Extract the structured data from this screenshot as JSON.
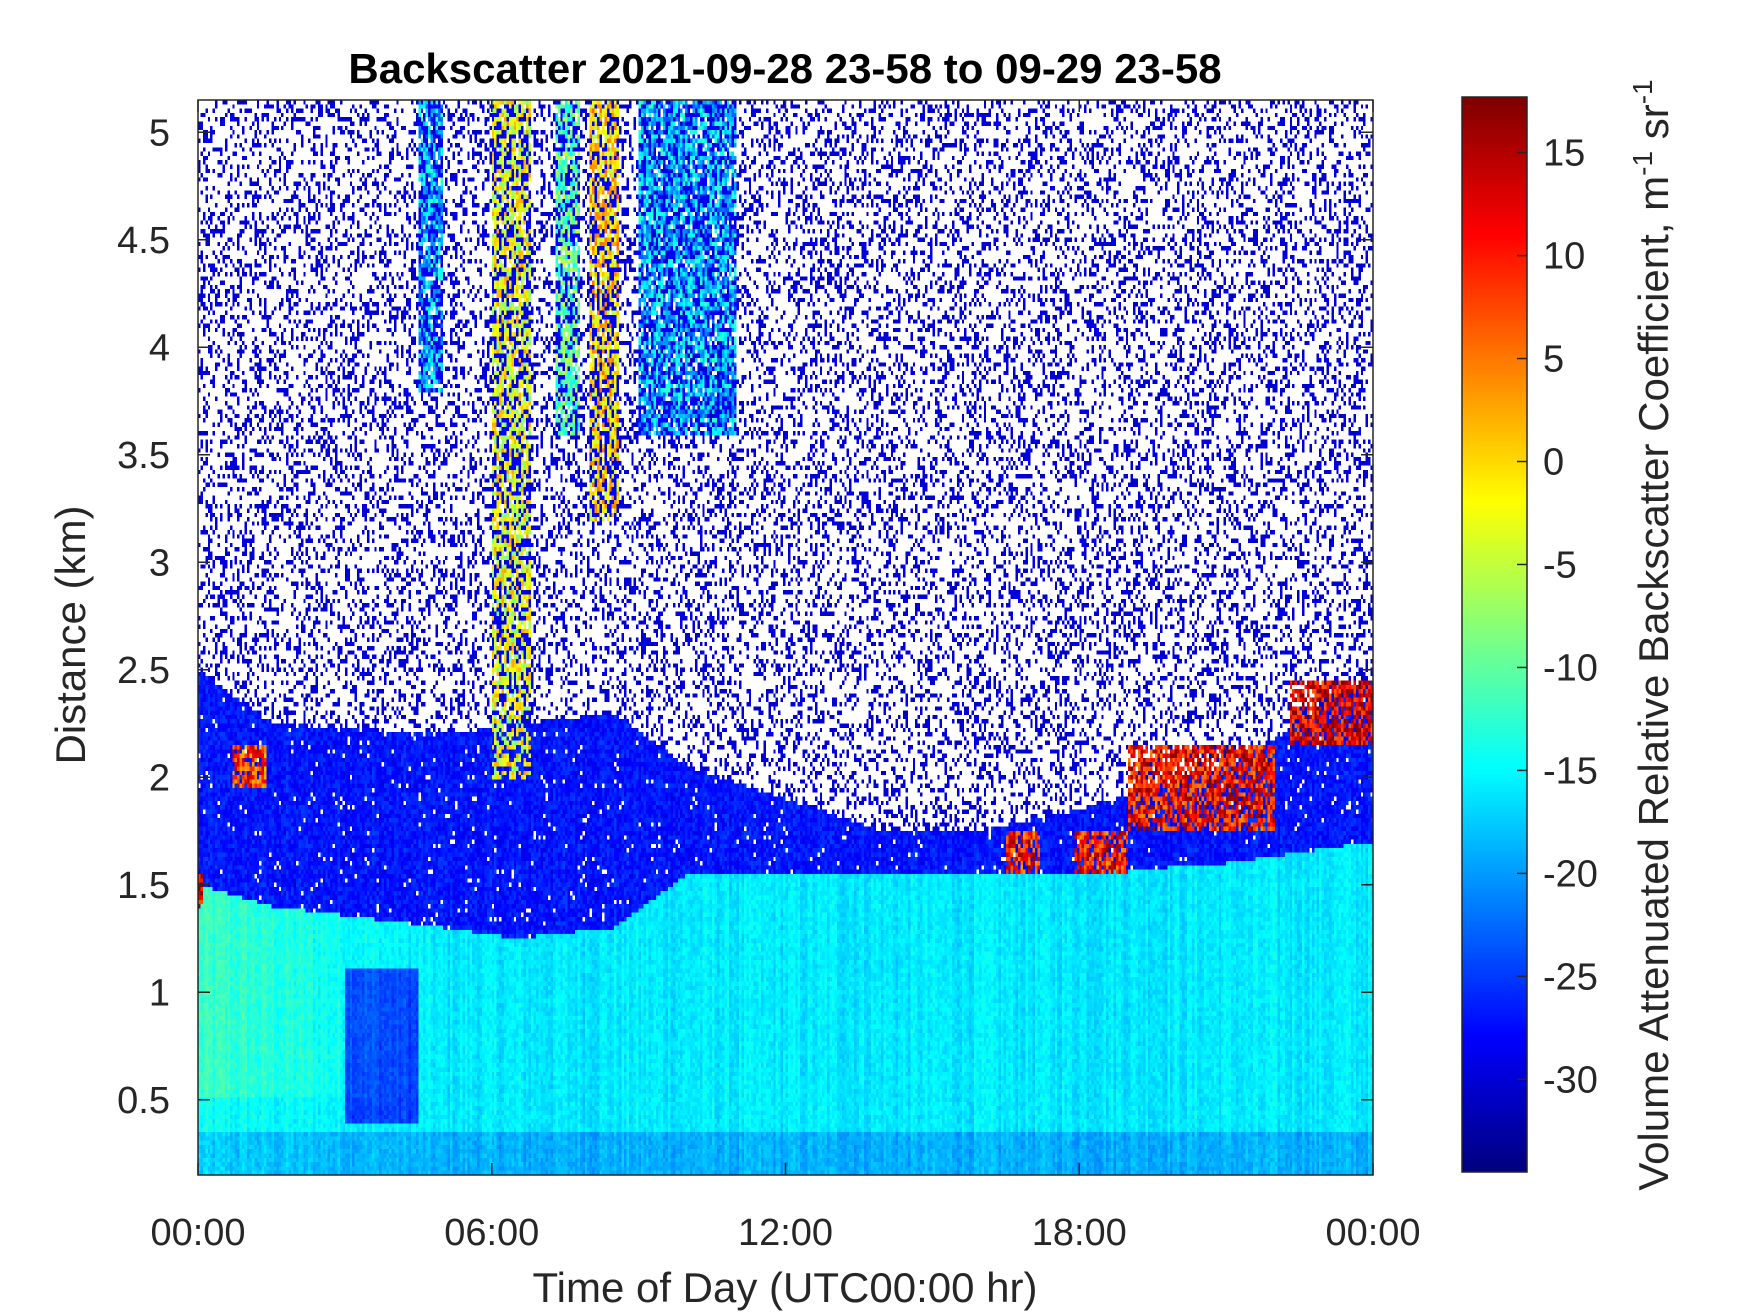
{
  "chart_data": {
    "type": "heatmap",
    "title": "Backscatter 2021-09-28 23-58 to 09-29 23-58",
    "xlabel": "Time of Day (UTC00:00 hr)",
    "ylabel": "Distance (km)",
    "colorbar_label": "Volume Attenuated Relative Backscatter Coefficient, m",
    "colorbar_unit_sup1": "-1",
    "colorbar_unit_mid": " sr",
    "colorbar_unit_sup2": "-1",
    "x_ticks": [
      "00:00",
      "06:00",
      "12:00",
      "18:00",
      "00:00"
    ],
    "x_tick_hours": [
      0,
      6,
      12,
      18,
      24
    ],
    "xlim_hours": [
      0,
      24
    ],
    "y_ticks": [
      "0.5",
      "1",
      "1.5",
      "2",
      "2.5",
      "3",
      "3.5",
      "4",
      "4.5",
      "5"
    ],
    "y_tick_values": [
      0.5,
      1,
      1.5,
      2,
      2.5,
      3,
      3.5,
      4,
      4.5,
      5
    ],
    "ylim_km": [
      0.15,
      5.15
    ],
    "colorbar_ticks": [
      "15",
      "10",
      "5",
      "0",
      "-5",
      "-10",
      "-15",
      "-20",
      "-25",
      "-30"
    ],
    "colorbar_tick_values": [
      15,
      10,
      5,
      0,
      -5,
      -10,
      -15,
      -20,
      -25,
      -30
    ],
    "clim": [
      -34.5,
      17.7
    ],
    "colormap": "jet",
    "missing_color": "#ffffff",
    "features": {
      "boundary_layer_top_km": [
        [
          0,
          1.5
        ],
        [
          1.5,
          1.4
        ],
        [
          5,
          1.3
        ],
        [
          6.5,
          1.25
        ],
        [
          8.5,
          1.3
        ],
        [
          10,
          1.55
        ],
        [
          14,
          1.55
        ],
        [
          18,
          1.55
        ],
        [
          21,
          1.6
        ],
        [
          24,
          1.7
        ]
      ],
      "aerosol_layer_top_km": [
        [
          0,
          2.5
        ],
        [
          1.5,
          2.25
        ],
        [
          5,
          2.2
        ],
        [
          8.5,
          2.3
        ],
        [
          10,
          2.05
        ],
        [
          14,
          1.75
        ],
        [
          16,
          1.75
        ],
        [
          18,
          1.85
        ],
        [
          21,
          2.05
        ],
        [
          24,
          2.45
        ]
      ],
      "cloud_patches": [
        {
          "hours": [
            0,
            0.1
          ],
          "km": [
            1.4,
            1.55
          ],
          "value": 12
        },
        {
          "hours": [
            0.7,
            1.4
          ],
          "km": [
            1.95,
            2.15
          ],
          "value": 8
        },
        {
          "hours": [
            16.5,
            17.2
          ],
          "km": [
            1.55,
            1.75
          ],
          "value": 10
        },
        {
          "hours": [
            17.9,
            19.0
          ],
          "km": [
            1.55,
            1.75
          ],
          "value": 10
        },
        {
          "hours": [
            19.0,
            22.0
          ],
          "km": [
            1.75,
            2.15
          ],
          "value": 11
        },
        {
          "hours": [
            22.3,
            24.0
          ],
          "km": [
            2.15,
            2.45
          ],
          "value": 13
        }
      ],
      "vertical_plumes": [
        {
          "hours": [
            4.5,
            5.0
          ],
          "km_min": 3.8,
          "value": -18
        },
        {
          "hours": [
            6.0,
            6.8
          ],
          "km_min": 2.0,
          "value": -3
        },
        {
          "hours": [
            7.3,
            7.8
          ],
          "km_min": 3.6,
          "value": -10
        },
        {
          "hours": [
            8.0,
            8.6
          ],
          "km_min": 3.2,
          "value": 0
        },
        {
          "hours": [
            9.0,
            11.0
          ],
          "km_min": 3.6,
          "value": -18
        }
      ]
    }
  }
}
